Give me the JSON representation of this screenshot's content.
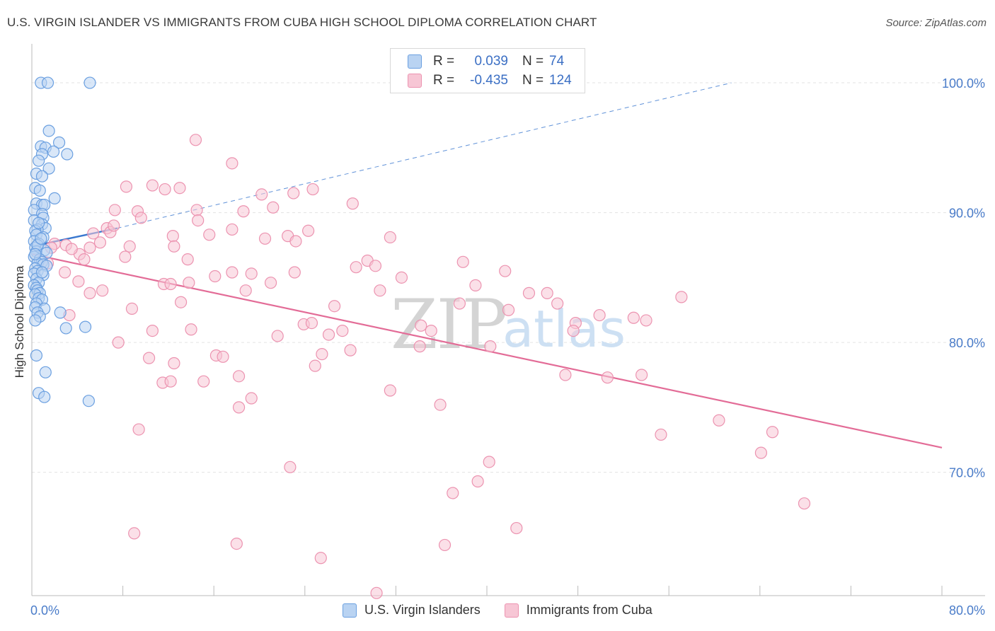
{
  "title": "U.S. VIRGIN ISLANDER VS IMMIGRANTS FROM CUBA HIGH SCHOOL DIPLOMA CORRELATION CHART",
  "source": "Source: ZipAtlas.com",
  "watermark": {
    "zip": "ZIP",
    "atlas": "atlas"
  },
  "legend_top": {
    "rows": [
      {
        "r_label": "R =",
        "r_value": "0.039",
        "n_label": "N =",
        "n_value": "74"
      },
      {
        "r_label": "R =",
        "r_value": "-0.435",
        "n_label": "N =",
        "n_value": "124"
      }
    ]
  },
  "legend_bottom": {
    "items": [
      "U.S. Virgin Islanders",
      "Immigrants from Cuba"
    ]
  },
  "colors": {
    "blue_fill": "#b9d3f2",
    "blue_stroke": "#6a9fe0",
    "blue_line": "#3a78cf",
    "pink_fill": "#f7c6d5",
    "pink_stroke": "#ec93b0",
    "pink_line": "#e36c97",
    "grid": "#e3e3e3",
    "tick_text": "#4a7cc9"
  },
  "chart_data": {
    "type": "scatter",
    "title": "U.S. VIRGIN ISLANDER VS IMMIGRANTS FROM CUBA HIGH SCHOOL DIPLOMA CORRELATION CHART",
    "xlabel": "",
    "ylabel": "High School Diploma",
    "xlim": [
      0,
      80
    ],
    "ylim": [
      60.5,
      103
    ],
    "x_tick_labels": [
      "0.0%",
      "80.0%"
    ],
    "y_ticks": [
      70,
      80,
      90,
      100
    ],
    "y_tick_labels": [
      "70.0%",
      "80.0%",
      "90.0%",
      "100.0%"
    ],
    "grid": true,
    "legend_position": "top-center",
    "series": [
      {
        "name": "U.S. Virgin Islanders",
        "R": 0.039,
        "N": 74,
        "trend": {
          "x": [
            0,
            7.5
          ],
          "y": [
            87.4,
            88.8
          ],
          "style": "solid"
        },
        "trend_extension": {
          "x": [
            7.5,
            61.5
          ],
          "y": [
            88.8,
            100.0
          ],
          "style": "dashed"
        },
        "points": [
          [
            0.8,
            100
          ],
          [
            1.4,
            100
          ],
          [
            5.1,
            100
          ],
          [
            1.5,
            96.3
          ],
          [
            2.4,
            95.4
          ],
          [
            0.8,
            95.1
          ],
          [
            1.2,
            95.0
          ],
          [
            1.9,
            94.7
          ],
          [
            3.1,
            94.5
          ],
          [
            0.9,
            94.5
          ],
          [
            0.6,
            94.0
          ],
          [
            1.5,
            93.4
          ],
          [
            0.4,
            93.0
          ],
          [
            0.9,
            92.8
          ],
          [
            0.3,
            91.9
          ],
          [
            0.7,
            91.7
          ],
          [
            2.0,
            91.1
          ],
          [
            0.4,
            90.7
          ],
          [
            0.9,
            90.6
          ],
          [
            1.1,
            90.6
          ],
          [
            0.2,
            90.2
          ],
          [
            0.9,
            89.9
          ],
          [
            1.0,
            89.6
          ],
          [
            0.2,
            89.4
          ],
          [
            0.9,
            89.1
          ],
          [
            1.2,
            88.8
          ],
          [
            0.5,
            88.7
          ],
          [
            0.3,
            88.6
          ],
          [
            0.4,
            88.3
          ],
          [
            1.0,
            88.1
          ],
          [
            0.2,
            87.8
          ],
          [
            0.6,
            87.6
          ],
          [
            0.3,
            87.3
          ],
          [
            1.1,
            87.1
          ],
          [
            0.4,
            87.0
          ],
          [
            1.3,
            86.9
          ],
          [
            0.2,
            86.6
          ],
          [
            0.7,
            86.4
          ],
          [
            0.9,
            86.2
          ],
          [
            0.5,
            86.1
          ],
          [
            1.0,
            86.0
          ],
          [
            1.3,
            85.9
          ],
          [
            0.3,
            85.7
          ],
          [
            0.5,
            85.5
          ],
          [
            0.2,
            85.3
          ],
          [
            1.0,
            85.2
          ],
          [
            0.4,
            84.9
          ],
          [
            0.6,
            84.6
          ],
          [
            0.2,
            84.4
          ],
          [
            0.4,
            84.2
          ],
          [
            0.5,
            84.0
          ],
          [
            0.7,
            83.8
          ],
          [
            0.3,
            83.7
          ],
          [
            0.6,
            83.4
          ],
          [
            0.9,
            83.3
          ],
          [
            0.4,
            83.0
          ],
          [
            0.3,
            82.7
          ],
          [
            1.1,
            82.6
          ],
          [
            2.5,
            82.3
          ],
          [
            0.5,
            82.3
          ],
          [
            0.7,
            82.0
          ],
          [
            0.3,
            81.7
          ],
          [
            3.0,
            81.1
          ],
          [
            4.7,
            81.2
          ],
          [
            0.4,
            79.0
          ],
          [
            1.2,
            77.7
          ],
          [
            0.6,
            76.1
          ],
          [
            1.1,
            75.8
          ],
          [
            5.0,
            75.5
          ],
          [
            0.5,
            87.5
          ],
          [
            0.8,
            88.0
          ],
          [
            0.3,
            86.8
          ],
          [
            0.6,
            89.2
          ],
          [
            0.9,
            85.4
          ]
        ]
      },
      {
        "name": "Immigrants from Cuba",
        "R": -0.435,
        "N": 124,
        "trend": {
          "x": [
            0,
            80
          ],
          "y": [
            86.8,
            71.9
          ],
          "style": "solid"
        },
        "points": [
          [
            14.4,
            95.6
          ],
          [
            17.6,
            93.8
          ],
          [
            8.3,
            92.0
          ],
          [
            11.7,
            91.8
          ],
          [
            10.6,
            92.1
          ],
          [
            13.0,
            91.9
          ],
          [
            20.2,
            91.4
          ],
          [
            23.0,
            91.5
          ],
          [
            24.7,
            91.8
          ],
          [
            28.2,
            90.7
          ],
          [
            7.3,
            90.2
          ],
          [
            9.3,
            90.1
          ],
          [
            14.5,
            90.2
          ],
          [
            18.6,
            90.1
          ],
          [
            21.2,
            90.4
          ],
          [
            9.6,
            89.6
          ],
          [
            14.6,
            89.4
          ],
          [
            6.6,
            88.8
          ],
          [
            6.9,
            88.5
          ],
          [
            5.4,
            88.4
          ],
          [
            12.4,
            88.2
          ],
          [
            15.6,
            88.3
          ],
          [
            17.6,
            88.7
          ],
          [
            20.5,
            88.0
          ],
          [
            22.5,
            88.2
          ],
          [
            23.2,
            87.8
          ],
          [
            24.3,
            88.6
          ],
          [
            31.5,
            88.1
          ],
          [
            6.0,
            87.7
          ],
          [
            5.1,
            87.3
          ],
          [
            8.6,
            87.4
          ],
          [
            12.5,
            87.4
          ],
          [
            2.0,
            87.6
          ],
          [
            1.7,
            87.3
          ],
          [
            3.0,
            87.5
          ],
          [
            4.2,
            86.8
          ],
          [
            4.6,
            86.4
          ],
          [
            8.2,
            86.6
          ],
          [
            13.7,
            86.4
          ],
          [
            29.5,
            86.3
          ],
          [
            30.2,
            85.9
          ],
          [
            37.9,
            86.2
          ],
          [
            1.4,
            86.1
          ],
          [
            2.9,
            85.4
          ],
          [
            16.1,
            85.1
          ],
          [
            17.6,
            85.4
          ],
          [
            19.3,
            85.3
          ],
          [
            23.1,
            85.4
          ],
          [
            28.5,
            85.8
          ],
          [
            41.6,
            85.5
          ],
          [
            4.1,
            84.7
          ],
          [
            11.6,
            84.5
          ],
          [
            12.2,
            84.5
          ],
          [
            13.8,
            84.6
          ],
          [
            21.0,
            84.6
          ],
          [
            30.6,
            84.0
          ],
          [
            39.0,
            84.4
          ],
          [
            18.8,
            84.0
          ],
          [
            5.1,
            83.8
          ],
          [
            6.2,
            84.0
          ],
          [
            43.7,
            83.8
          ],
          [
            45.3,
            83.8
          ],
          [
            57.1,
            83.5
          ],
          [
            13.1,
            83.1
          ],
          [
            37.6,
            83.0
          ],
          [
            46.2,
            83.0
          ],
          [
            8.8,
            82.6
          ],
          [
            41.9,
            82.5
          ],
          [
            49.9,
            82.1
          ],
          [
            52.9,
            81.9
          ],
          [
            54.0,
            81.7
          ],
          [
            3.3,
            82.1
          ],
          [
            23.9,
            81.4
          ],
          [
            24.6,
            81.5
          ],
          [
            27.3,
            80.9
          ],
          [
            34.2,
            81.3
          ],
          [
            35.1,
            80.9
          ],
          [
            40.3,
            79.7
          ],
          [
            47.8,
            81.5
          ],
          [
            47.6,
            80.9
          ],
          [
            10.6,
            80.9
          ],
          [
            14.0,
            81.0
          ],
          [
            21.6,
            80.5
          ],
          [
            7.6,
            80.0
          ],
          [
            26.1,
            80.6
          ],
          [
            28.0,
            79.4
          ],
          [
            34.1,
            79.7
          ],
          [
            16.2,
            79.0
          ],
          [
            16.8,
            78.9
          ],
          [
            25.5,
            79.1
          ],
          [
            10.3,
            78.8
          ],
          [
            12.5,
            78.4
          ],
          [
            24.9,
            78.2
          ],
          [
            18.2,
            77.4
          ],
          [
            11.5,
            76.9
          ],
          [
            15.1,
            77.0
          ],
          [
            12.2,
            77.0
          ],
          [
            46.9,
            77.5
          ],
          [
            50.6,
            77.3
          ],
          [
            53.6,
            77.5
          ],
          [
            31.5,
            76.3
          ],
          [
            19.3,
            75.7
          ],
          [
            18.2,
            75.0
          ],
          [
            35.9,
            75.2
          ],
          [
            9.4,
            73.3
          ],
          [
            55.3,
            72.9
          ],
          [
            60.4,
            74.0
          ],
          [
            65.1,
            73.1
          ],
          [
            64.1,
            71.5
          ],
          [
            40.2,
            70.8
          ],
          [
            22.7,
            70.4
          ],
          [
            39.2,
            69.3
          ],
          [
            37.0,
            68.4
          ],
          [
            67.9,
            67.6
          ],
          [
            42.6,
            65.7
          ],
          [
            9.0,
            65.3
          ],
          [
            18.0,
            64.5
          ],
          [
            36.3,
            64.4
          ],
          [
            25.4,
            63.4
          ],
          [
            30.3,
            60.7
          ],
          [
            3.5,
            87.2
          ],
          [
            7.2,
            89.0
          ],
          [
            26.6,
            82.8
          ],
          [
            32.5,
            85.0
          ]
        ]
      }
    ]
  }
}
